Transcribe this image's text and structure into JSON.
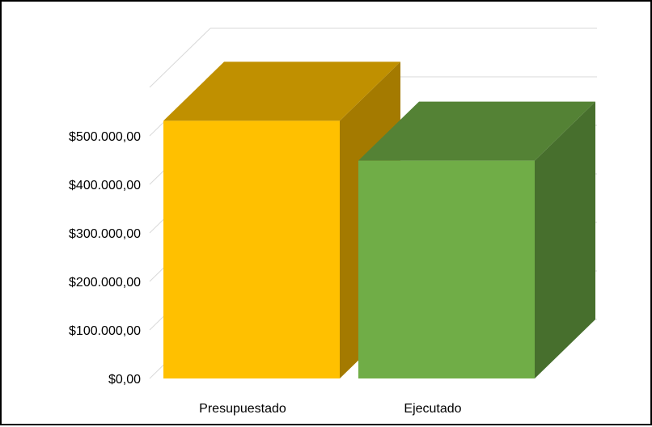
{
  "chart_data": {
    "type": "bar",
    "style": "3d",
    "categories": [
      "Presupuestado",
      "Ejecutado"
    ],
    "values": [
      531000,
      449000
    ],
    "ylim": [
      0,
      600000
    ],
    "yticks": [
      "$0,00",
      "$100.000,00",
      "$200.000,00",
      "$300.000,00",
      "$400.000,00",
      "$500.000,00"
    ],
    "grid": true,
    "legend": "none",
    "colors": {
      "bar": [
        "#ffc000",
        "#70ad47"
      ],
      "bar_top": [
        "#c09000",
        "#548235"
      ],
      "bar_side": [
        "#a47a00",
        "#476f2d"
      ],
      "grid": "#d9d9d9",
      "text": "#000000"
    }
  }
}
